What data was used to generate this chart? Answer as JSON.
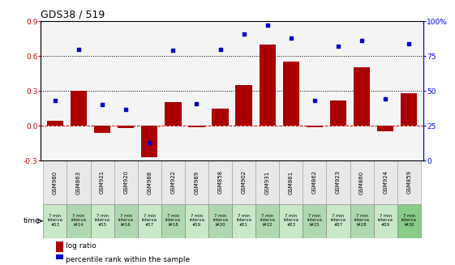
{
  "title": "GDS38 / 519",
  "samples": [
    "GSM980",
    "GSM863",
    "GSM921",
    "GSM920",
    "GSM988",
    "GSM922",
    "GSM989",
    "GSM858",
    "GSM902",
    "GSM931",
    "GSM861",
    "GSM862",
    "GSM923",
    "GSM860",
    "GSM924",
    "GSM859"
  ],
  "time_labels": [
    "7 min\ninterva\n#13",
    "7 min\ninterva\nl#14",
    "7 min\ninterva\n#15",
    "7 min\ninterva\nl#16",
    "7 min\ninterva\n#17",
    "7 min\ninterva\nl#18",
    "7 min\ninterva\n#19",
    "7 min\ninterva\nl#20",
    "7 min\ninterva\n#21",
    "7 min\ninterva\nl#22",
    "7 min\ninterva\n#23",
    "7 min\ninterva\nl#25",
    "7 min\ninterva\n#27",
    "7 min\ninterva\nl#28",
    "7 min\ninterva\n#29",
    "7 min\ninterva\nl#30"
  ],
  "log_ratio": [
    0.04,
    0.3,
    -0.06,
    -0.02,
    -0.27,
    0.2,
    -0.01,
    0.15,
    0.35,
    0.7,
    0.55,
    -0.01,
    0.22,
    0.5,
    -0.05,
    0.28
  ],
  "percentile": [
    43,
    80,
    40,
    37,
    13,
    79,
    41,
    80,
    91,
    97,
    88,
    43,
    82,
    86,
    44,
    84
  ],
  "bar_color": "#aa0000",
  "dot_color": "#0000cc",
  "plot_bg": "#f4f4f4",
  "ylim_left": [
    -0.3,
    0.9
  ],
  "ylim_right": [
    0,
    100
  ],
  "yticks_left": [
    -0.3,
    0.0,
    0.3,
    0.6,
    0.9
  ],
  "yticks_right": [
    0,
    25,
    50,
    75,
    100
  ],
  "hlines": [
    0.3,
    0.6
  ],
  "cell_color_odd": "#c8e8c8",
  "cell_color_even": "#b0d8b0",
  "cell_color_last": "#88cc88"
}
